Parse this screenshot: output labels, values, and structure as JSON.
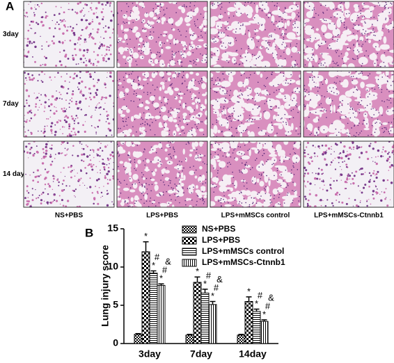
{
  "panel_a": {
    "label": "A",
    "rows": [
      "3day",
      "7day",
      "14 day"
    ],
    "columns": [
      "NS+PBS",
      "LPS+PBS",
      "LPS+mMSCs control",
      "LPS+mMSCs-Ctnnb1"
    ]
  },
  "chart_data": {
    "type": "bar",
    "panel_label": "B",
    "y_label": "Lung injury score",
    "categories": [
      "3day",
      "7day",
      "14day"
    ],
    "ylim": [
      0,
      15
    ],
    "yticks": [
      0,
      5,
      10,
      15
    ],
    "series": [
      {
        "name": "NS+PBS",
        "color": "#000000",
        "values": [
          1.2,
          1.1,
          1.1
        ],
        "errors": [
          0.1,
          0.1,
          0.1
        ],
        "markers": [
          [],
          [],
          []
        ]
      },
      {
        "name": "LPS+PBS",
        "color": "#000000",
        "values": [
          12.0,
          8.0,
          5.5
        ],
        "errors": [
          1.3,
          0.7,
          0.6
        ],
        "markers": [
          [
            "*"
          ],
          [
            "*"
          ],
          [
            "*"
          ]
        ]
      },
      {
        "name": "LPS+mMSCs control",
        "color": "#000000",
        "values": [
          9.2,
          6.6,
          4.2
        ],
        "errors": [
          0.3,
          0.5,
          0.3
        ],
        "markers": [
          [
            "*",
            "#"
          ],
          [
            "*",
            "#"
          ],
          [
            "*",
            "#"
          ]
        ]
      },
      {
        "name": "LPS+mMSCs-Ctnnb1",
        "color": "#000000",
        "values": [
          7.6,
          5.1,
          2.9
        ],
        "errors": [
          0.2,
          0.4,
          0.2
        ],
        "markers": [
          [
            "*",
            "#",
            "&"
          ],
          [
            "*",
            "#",
            "&"
          ],
          [
            "*",
            "#",
            "&"
          ]
        ]
      }
    ]
  }
}
